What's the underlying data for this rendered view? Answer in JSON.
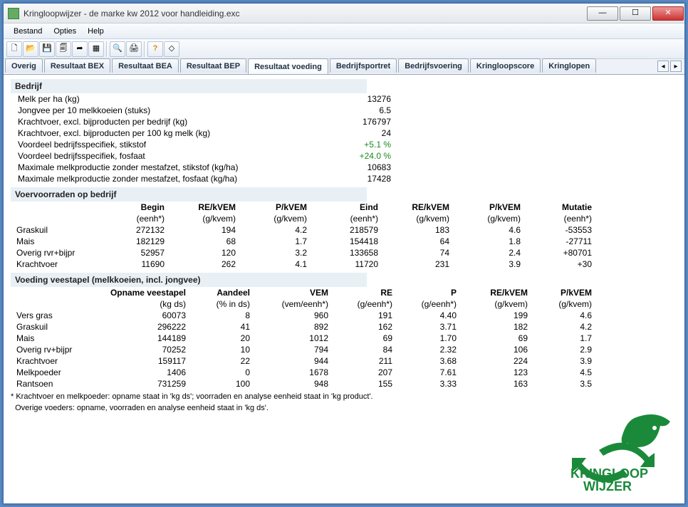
{
  "window": {
    "title": "Kringloopwijzer - de marke kw 2012 voor handleiding.exc"
  },
  "menu": {
    "items": [
      "Bestand",
      "Opties",
      "Help"
    ]
  },
  "toolbar_icons": [
    "new",
    "open",
    "save",
    "copy",
    "export",
    "grid",
    "preview",
    "print",
    "help",
    "eraser"
  ],
  "tabs": {
    "items": [
      "Overig",
      "Resultaat BEX",
      "Resultaat BEA",
      "Resultaat BEP",
      "Resultaat voeding",
      "Bedrijfsportret",
      "Bedrijfsvoering",
      "Kringloopscore",
      "Kringlopen"
    ],
    "active_index": 4
  },
  "bedrijf": {
    "header": "Bedrijf",
    "rows": [
      {
        "label": "Melk per ha (kg)",
        "value": "13276",
        "green": false
      },
      {
        "label": "Jongvee per 10 melkkoeien (stuks)",
        "value": "6.5",
        "green": false
      },
      {
        "label": "Krachtvoer, excl. bijproducten per bedrijf (kg)",
        "value": "176797",
        "green": false
      },
      {
        "label": "Krachtvoer, excl. bijproducten per 100 kg melk (kg)",
        "value": "24",
        "green": false
      },
      {
        "label": "Voordeel bedrijfsspecifiek, stikstof",
        "value": "+5.1 %",
        "green": true
      },
      {
        "label": "Voordeel bedrijfsspecifiek, fosfaat",
        "value": "+24.0 %",
        "green": true
      },
      {
        "label": "Maximale melkproductie zonder mestafzet, stikstof (kg/ha)",
        "value": "10683",
        "green": false
      },
      {
        "label": "Maximale melkproductie zonder mestafzet, fosfaat (kg/ha)",
        "value": "17428",
        "green": false
      }
    ]
  },
  "voer": {
    "header": "Voervoorraden op bedrijf",
    "cols": [
      {
        "h": "",
        "u": ""
      },
      {
        "h": "Begin",
        "u": "(eenh*)"
      },
      {
        "h": "RE/kVEM",
        "u": "(g/kvem)"
      },
      {
        "h": "P/kVEM",
        "u": "(g/kvem)"
      },
      {
        "h": "Eind",
        "u": "(eenh*)"
      },
      {
        "h": "RE/kVEM",
        "u": "(g/kvem)"
      },
      {
        "h": "P/kVEM",
        "u": "(g/kvem)"
      },
      {
        "h": "Mutatie",
        "u": "(eenh*)"
      }
    ],
    "rows": [
      [
        "Graskuil",
        "272132",
        "194",
        "4.2",
        "218579",
        "183",
        "4.6",
        "-53553"
      ],
      [
        "Mais",
        "182129",
        "68",
        "1.7",
        "154418",
        "64",
        "1.8",
        "-27711"
      ],
      [
        "Overig rvr+bijpr",
        "52957",
        "120",
        "3.2",
        "133658",
        "74",
        "2.4",
        "+80701"
      ],
      [
        "Krachtvoer",
        "11690",
        "262",
        "4.1",
        "11720",
        "231",
        "3.9",
        "+30"
      ]
    ]
  },
  "voeding": {
    "header": "Voeding veestapel (melkkoeien, incl. jongvee)",
    "cols": [
      {
        "h": "",
        "u": ""
      },
      {
        "h": "Opname veestapel",
        "u": "(kg ds)"
      },
      {
        "h": "Aandeel",
        "u": "(% in ds)"
      },
      {
        "h": "VEM",
        "u": "(vem/eenh*)"
      },
      {
        "h": "RE",
        "u": "(g/eenh*)"
      },
      {
        "h": "P",
        "u": "(g/eenh*)"
      },
      {
        "h": "RE/kVEM",
        "u": "(g/kvem)"
      },
      {
        "h": "P/kVEM",
        "u": "(g/kvem)"
      }
    ],
    "rows": [
      [
        "Vers gras",
        "60073",
        "8",
        "960",
        "191",
        "4.40",
        "199",
        "4.6"
      ],
      [
        "Graskuil",
        "296222",
        "41",
        "892",
        "162",
        "3.71",
        "182",
        "4.2"
      ],
      [
        "Mais",
        "144189",
        "20",
        "1012",
        "69",
        "1.70",
        "69",
        "1.7"
      ],
      [
        "Overig rv+bijpr",
        "70252",
        "10",
        "794",
        "84",
        "2.32",
        "106",
        "2.9"
      ],
      [
        "Krachtvoer",
        "159117",
        "22",
        "944",
        "211",
        "3.68",
        "224",
        "3.9"
      ],
      [
        "Melkpoeder",
        "1406",
        "0",
        "1678",
        "207",
        "7.61",
        "123",
        "4.5"
      ],
      [
        "Rantsoen",
        "731259",
        "100",
        "948",
        "155",
        "3.33",
        "163",
        "3.5"
      ]
    ]
  },
  "footnote": {
    "line1": "* Krachtvoer en melkpoeder: opname staat in 'kg ds'; voorraden en analyse eenheid staat in 'kg product'.",
    "line2": "  Overige voeders: opname, voorraden en analyse eenheid staat in 'kg ds'."
  },
  "logo": {
    "line1": "KRINGLOOP",
    "line2": "WIJZER",
    "color": "#1a8a3a"
  }
}
